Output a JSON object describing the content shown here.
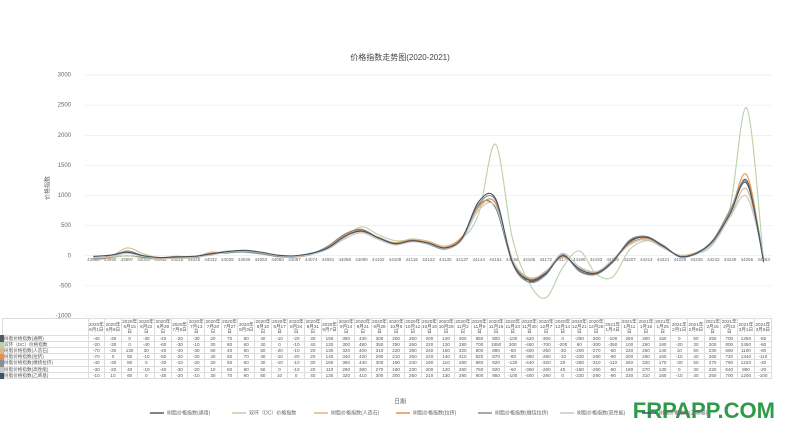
{
  "chart_data": {
    "type": "line",
    "title": "价格指数走势图(2020-2021)",
    "y_label": "价格指数",
    "x_label": "日期",
    "watermark": "FRPAPP.COM",
    "ylim": [
      -1000,
      3000
    ],
    "yticks": [
      -1000,
      -500,
      0,
      500,
      1000,
      1500,
      2000,
      2500,
      3000
    ],
    "grid": true,
    "legend": "bottom",
    "categories": [
      "43983",
      "43990",
      "43997",
      "44004",
      "44011",
      "44018",
      "44025",
      "44032",
      "44039",
      "44046",
      "44053",
      "44060",
      "44067",
      "44074",
      "44081",
      "44088",
      "44095",
      "44102",
      "44109",
      "44116",
      "44123",
      "44130",
      "44137",
      "44144",
      "44151",
      "44158",
      "44165",
      "44172",
      "44179",
      "44186",
      "44193",
      "44200",
      "44207",
      "44214",
      "44221",
      "44228",
      "44235",
      "44242",
      "44249",
      "44256",
      "44263"
    ],
    "dates": [
      "2020年6月1日",
      "2020年6月8日",
      "2020年6月15日",
      "2020年6月22日",
      "2020年6月29日",
      "2020年7月6日",
      "2020年7月13日",
      "2020年7月20日",
      "2020年7月27日",
      "2020年8月3日",
      "2020年8月10日",
      "2020年8月17日",
      "2020年8月24日",
      "2020年8月31日",
      "2020年9月7日",
      "2020年9月14日",
      "2020年9月21日",
      "2020年9月28日",
      "2020年10月5日",
      "2020年10月12日",
      "2020年10月19日",
      "2020年10月26日",
      "2020年11月2日",
      "2020年11月9日",
      "2020年11月16日",
      "2020年11月23日",
      "2020年11月30日",
      "2020年12月7日",
      "2020年12月14日",
      "2020年12月21日",
      "2020年12月28日",
      "2021年1月4日",
      "2021年1月11日",
      "2021年1月18日",
      "2021年1月25日",
      "2021年2月1日",
      "2021年2月8日",
      "2021年2月15日",
      "2021年2月22日",
      "2021年3月1日",
      "2021年3月8日"
    ],
    "series": [
      {
        "name": "树脂价格指数(通用)",
        "color": "#555a5e",
        "values": [
          -40,
          -30,
          0,
          -30,
          -40,
          -20,
          -30,
          20,
          70,
          80,
          40,
          -10,
          -20,
          30,
          150,
          350,
          430,
          300,
          200,
          250,
          200,
          120,
          300,
          850,
          800,
          -100,
          -420,
          -300,
          0,
          -250,
          -300,
          -100,
          250,
          300,
          150,
          0,
          50,
          250,
          700,
          1250,
          -50
        ]
      },
      {
        "name": "双环（DC）价格指数",
        "color": "#b9d2a6",
        "values": [
          -20,
          -30,
          0,
          -40,
          -60,
          -30,
          -10,
          30,
          80,
          60,
          30,
          0,
          -10,
          40,
          120,
          300,
          480,
          350,
          250,
          260,
          220,
          130,
          280,
          700,
          1850,
          300,
          -450,
          -700,
          -200,
          80,
          -300,
          -350,
          100,
          250,
          180,
          -20,
          30,
          200,
          800,
          2450,
          -80
        ]
      },
      {
        "name": "树脂价格指数(人造石)",
        "color": "#d9b98c",
        "values": [
          -70,
          -30,
          130,
          30,
          -40,
          -40,
          -30,
          60,
          40,
          90,
          50,
          -20,
          -10,
          20,
          130,
          320,
          400,
          310,
          220,
          280,
          240,
          160,
          320,
          800,
          880,
          -50,
          -400,
          -250,
          -30,
          -200,
          -270,
          -60,
          220,
          260,
          140,
          10,
          60,
          230,
          650,
          1100,
          -60
        ]
      },
      {
        "name": "树脂价格指数(拉挤)",
        "color": "#e3904f",
        "values": [
          -70,
          0,
          50,
          -10,
          -50,
          -20,
          -20,
          40,
          60,
          70,
          40,
          -10,
          -20,
          20,
          140,
          340,
          420,
          290,
          210,
          260,
          220,
          140,
          310,
          820,
          870,
          -80,
          -380,
          -280,
          -10,
          -230,
          -280,
          -80,
          200,
          290,
          160,
          -10,
          40,
          260,
          720,
          1340,
          -110
        ]
      },
      {
        "name": "树脂价格指数(缠绕拉挤)",
        "color": "#8a8f93",
        "values": [
          -40,
          -30,
          80,
          0,
          -30,
          -10,
          -20,
          20,
          50,
          60,
          30,
          -10,
          -10,
          30,
          160,
          360,
          440,
          300,
          190,
          240,
          190,
          110,
          280,
          860,
          920,
          -120,
          -440,
          -320,
          20,
          -260,
          -310,
          -110,
          260,
          320,
          170,
          -20,
          50,
          270,
          760,
          1220,
          -40
        ]
      },
      {
        "name": "树脂价格指数(高性能)",
        "color": "#c4c8cb",
        "values": [
          -30,
          -20,
          40,
          -10,
          -40,
          -30,
          -20,
          10,
          60,
          80,
          50,
          0,
          -10,
          20,
          110,
          280,
          380,
          270,
          180,
          230,
          200,
          120,
          260,
          760,
          820,
          -60,
          -360,
          -260,
          40,
          -180,
          -260,
          -80,
          180,
          270,
          130,
          0,
          30,
          220,
          640,
          980,
          -20
        ]
      },
      {
        "name": "树脂价格指数(乙烯基)",
        "color": "#3f5364",
        "values": [
          -10,
          10,
          60,
          0,
          -30,
          -20,
          -10,
          30,
          70,
          90,
          60,
          10,
          0,
          40,
          130,
          320,
          410,
          300,
          200,
          250,
          210,
          130,
          290,
          900,
          950,
          -100,
          -400,
          -290,
          0,
          -220,
          -290,
          -90,
          230,
          310,
          160,
          -10,
          40,
          250,
          700,
          1200,
          -100
        ]
      }
    ]
  }
}
